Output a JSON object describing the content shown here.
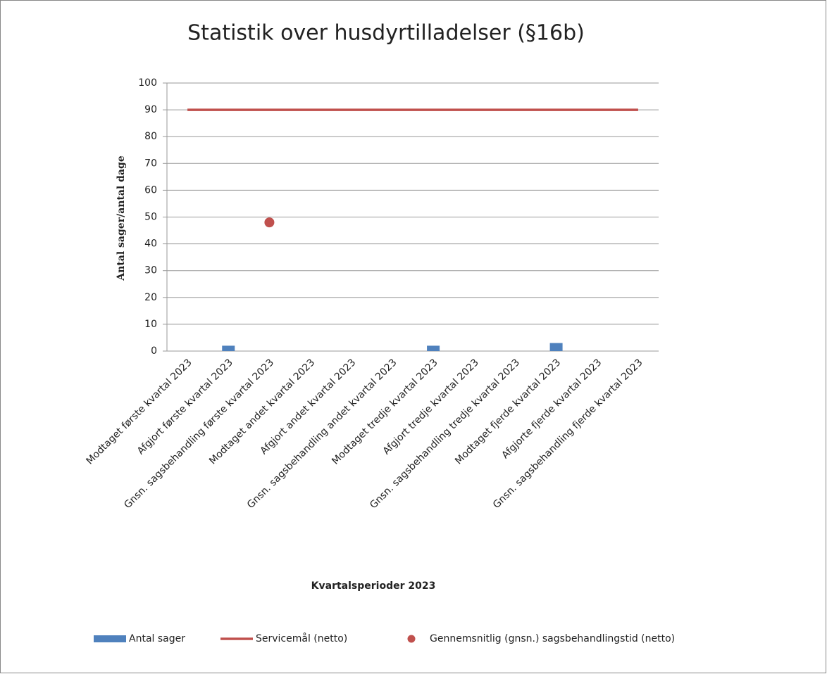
{
  "chart_data": {
    "type": "bar",
    "title": "Statistik over husdyrtilladelser (§16b)",
    "x_label": "Kvartalsperioder 2023",
    "y_label": "Antal sager/antal dage",
    "categories": [
      "Modtaget første kvartal 2023",
      "Afgjort første kvartal 2023",
      "Gnsn. sagsbehandling første kvartal 2023",
      "Modtaget andet kvartal 2023",
      "Afgjort andet kvartal 2023",
      "Gnsn. sagsbehandling andet kvartal 2023",
      "Modtaget tredje kvartal 2023",
      "Afgjort tredje kvartal 2023",
      "Gnsn. sagsbehandling tredje kvartal 2023",
      "Modtaget fjerde kvartal 2023",
      "Afgjorte fjerde kvartal 2023",
      "Gnsn. sagsbehandling fjerde kvartal 2023"
    ],
    "series": [
      {
        "name": "Antal sager",
        "type": "bar",
        "color": "#4f81bd",
        "values": [
          null,
          2,
          null,
          null,
          null,
          null,
          2,
          null,
          null,
          3,
          null,
          null
        ]
      },
      {
        "name": "Servicemål (netto)",
        "type": "line",
        "color": "#c0504d",
        "values": [
          90,
          90,
          90,
          90,
          90,
          90,
          90,
          90,
          90,
          90,
          90,
          90
        ]
      },
      {
        "name": "Gennemsnitlig (gnsn.) sagsbehandlingstid (netto)",
        "type": "scatter",
        "color": "#c0504d",
        "values": [
          null,
          null,
          48,
          null,
          null,
          null,
          null,
          null,
          null,
          null,
          null,
          null
        ]
      }
    ],
    "ylim": [
      0,
      100
    ],
    "yticks": [
      0,
      10,
      20,
      30,
      40,
      50,
      60,
      70,
      80,
      90,
      100
    ],
    "grid": true,
    "legend": "bottom"
  }
}
